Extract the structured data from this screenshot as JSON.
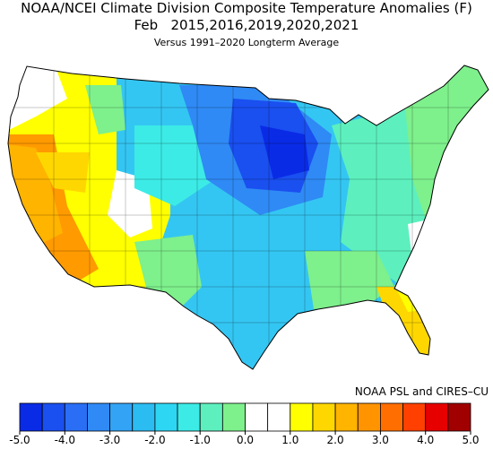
{
  "title": "NOAA/NCEI Climate Division Composite Temperature Anomalies (F)",
  "period": "Feb   2015,2016,2019,2020,2021",
  "subtitle": "Versus 1991–2020 Longterm Average",
  "credit": "NOAA PSL and CIRES–CU",
  "colorbar": {
    "bounds": [
      -5.0,
      -4.5,
      -4.0,
      -3.5,
      -3.0,
      -2.5,
      -2.0,
      -1.5,
      -1.0,
      -0.5,
      0.0,
      0.5,
      1.0,
      1.5,
      2.0,
      2.5,
      3.0,
      3.5,
      4.0,
      4.5,
      5.0
    ],
    "colors": [
      "#0a2be6",
      "#1a4ff0",
      "#2a6ef5",
      "#2f8af5",
      "#33a3f5",
      "#2bbcf2",
      "#2dd6f2",
      "#3cebe6",
      "#5df0be",
      "#7ef08c",
      "#ffffff",
      "#ffffff",
      "#ffff00",
      "#ffd700",
      "#ffb400",
      "#ff9400",
      "#ff6e00",
      "#ff4000",
      "#e60000",
      "#a00000"
    ],
    "ticks": [
      {
        "value": -5,
        "label": "-5.0"
      },
      {
        "value": -4,
        "label": "-4.0"
      },
      {
        "value": -3,
        "label": "-3.0"
      },
      {
        "value": -2,
        "label": "-2.0"
      },
      {
        "value": -1,
        "label": "-1.0"
      },
      {
        "value": 0,
        "label": "0.0"
      },
      {
        "value": 1,
        "label": "1.0"
      },
      {
        "value": 2,
        "label": "2.0"
      },
      {
        "value": 3,
        "label": "3.0"
      },
      {
        "value": 4,
        "label": "4.0"
      },
      {
        "value": 5,
        "label": "5.0"
      }
    ]
  }
}
